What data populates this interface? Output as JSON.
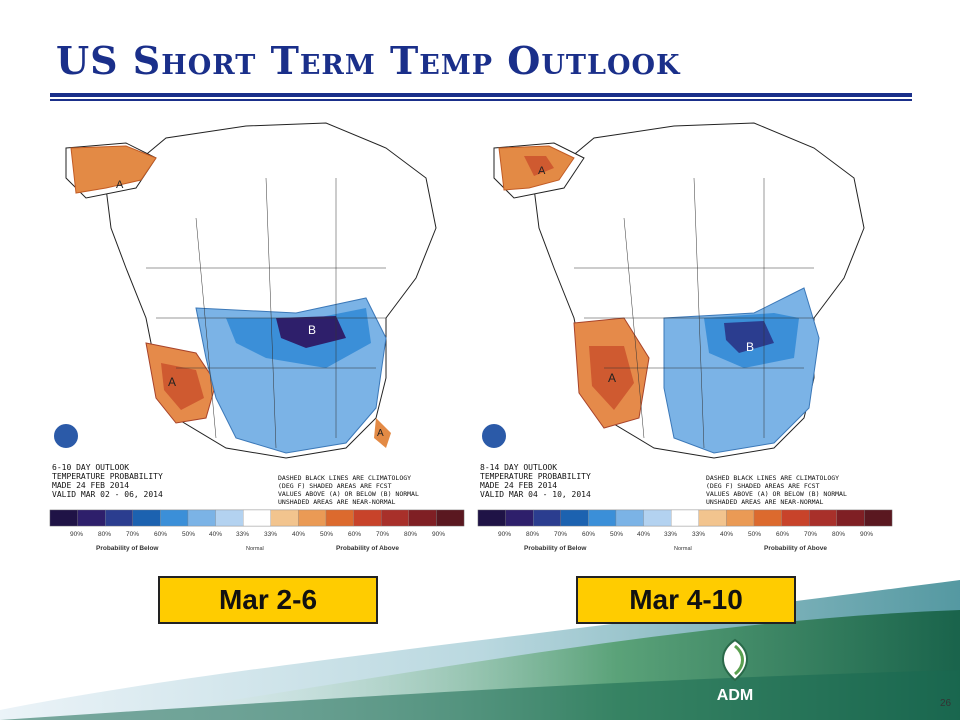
{
  "slide": {
    "title": "US Short Term Temp Outlook",
    "page_number": "26"
  },
  "maps": [
    {
      "caption": "Mar 2-6",
      "header_lines": [
        "6-10 DAY OUTLOOK",
        "TEMPERATURE PROBABILITY",
        "MADE  24 FEB 2014",
        "VALID  MAR 02 - 06, 2014"
      ],
      "footnote_lines": [
        "DASHED BLACK LINES ARE CLIMATOLOGY",
        "(DEG F) SHADED AREAS ARE FCST",
        "VALUES ABOVE (A) OR BELOW (B) NORMAL",
        "UNSHADED AREAS ARE NEAR-NORMAL"
      ],
      "region_labels": {
        "above_west": "A",
        "above_alaska": "A",
        "above_florida": "A",
        "below": "B"
      }
    },
    {
      "caption": "Mar 4-10",
      "header_lines": [
        "8-14 DAY OUTLOOK",
        "TEMPERATURE PROBABILITY",
        "MADE  24 FEB 2014",
        "VALID  MAR 04 - 10, 2014"
      ],
      "footnote_lines": [
        "DASHED BLACK LINES ARE CLIMATOLOGY",
        "(DEG F) SHADED AREAS ARE FCST",
        "VALUES ABOVE (A) OR BELOW (B) NORMAL",
        "UNSHADED AREAS ARE NEAR-NORMAL"
      ],
      "region_labels": {
        "above_west": "A",
        "above_alaska": "A",
        "below": "B"
      }
    }
  ],
  "legend": {
    "ticks": [
      "90%",
      "80%",
      "70%",
      "60%",
      "50%",
      "40%",
      "33%",
      "33%",
      "40%",
      "50%",
      "60%",
      "70%",
      "80%",
      "90%"
    ],
    "below_label": "Probability of Below",
    "normal_label": "Normal",
    "above_label": "Probability of Above",
    "colors": [
      "#1f1346",
      "#2e1f6b",
      "#2b3d8f",
      "#1c62b0",
      "#3b8fd8",
      "#7bb3e6",
      "#b3d2f0",
      "#ffffff",
      "#f2c48e",
      "#ea9a55",
      "#dc6a2e",
      "#c8432a",
      "#a8302a",
      "#7f1f24",
      "#5a1820"
    ]
  },
  "logo": {
    "name": "ADM"
  }
}
